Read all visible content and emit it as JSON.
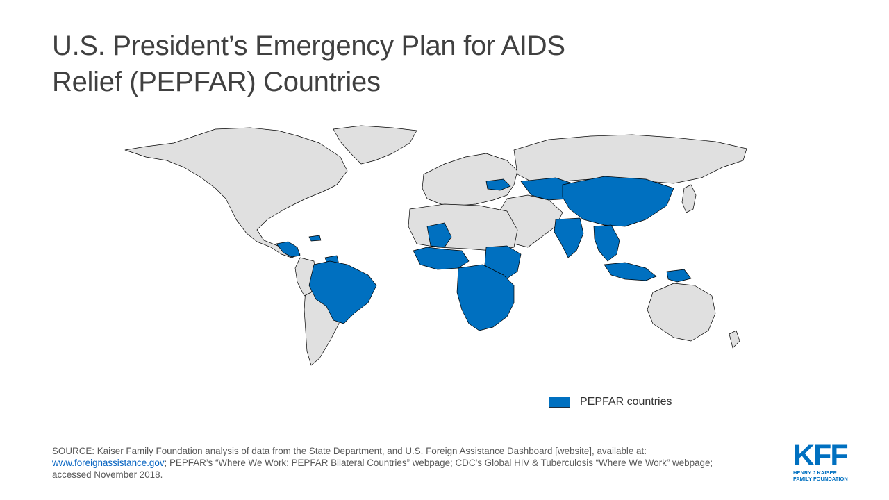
{
  "title": {
    "line1": "U.S. President’s Emergency Plan for AIDS",
    "line2": "Relief (PEPFAR) Countries"
  },
  "legend": {
    "label": "PEPFAR countries",
    "color": "#0070c0"
  },
  "colors": {
    "pepfar": "#0070c0",
    "land": "#e0e0e0",
    "border": "#000000"
  },
  "source": {
    "prefix": "SOURCE: Kaiser Family Foundation analysis of data from the State Department, and U.S. Foreign Assistance Dashboard [website], available at:",
    "link": "www.foreignassistance.gov",
    "suffix": "; PEPFAR’s “Where We Work: PEPFAR Bilateral Countries” webpage; CDC’s Global HIV  & Tuberculosis “Where We Work” webpage; accessed November 2018."
  },
  "logo": {
    "mark": "KFF",
    "line1": "HENRY J KAISER",
    "line2": "FAMILY FOUNDATION"
  }
}
